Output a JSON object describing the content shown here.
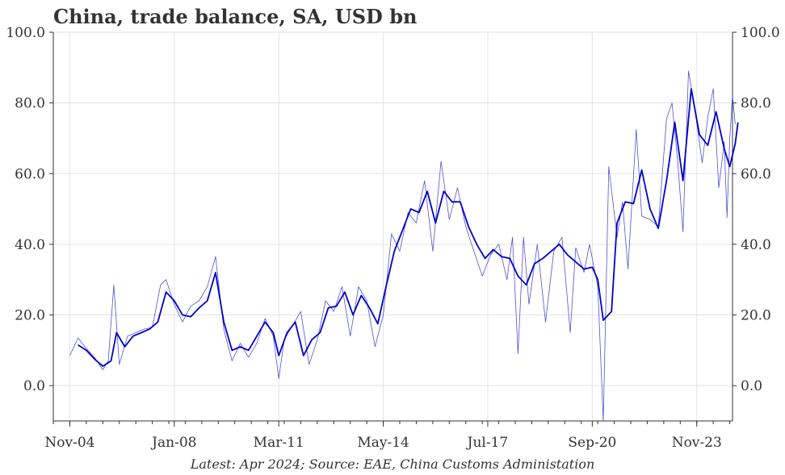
{
  "chart_data": {
    "type": "line",
    "title": "China, trade balance, SA, USD bn",
    "subtitle": "",
    "xlabel": "",
    "ylabel": "",
    "footer": "Latest: Apr 2024; Source: EAE, China Customs Administation",
    "x_ticks": [
      "Nov-04",
      "Jan-08",
      "Mar-11",
      "May-14",
      "Jul-17",
      "Sep-20",
      "Nov-23"
    ],
    "y_ticks": [
      "0.0",
      "20.0",
      "40.0",
      "60.0",
      "80.0",
      "100.0"
    ],
    "ylim": [
      -10,
      100
    ],
    "xlim": [
      "2004-05",
      "2024-12"
    ],
    "grid": true,
    "legend": "none",
    "series": [
      {
        "color": "#3333cc",
        "style": "thin",
        "points": [
          [
            "2004-11",
            8.5
          ],
          [
            "2005-02",
            13.5
          ],
          [
            "2005-05",
            10.5
          ],
          [
            "2005-08",
            8
          ],
          [
            "2005-11",
            4.5
          ],
          [
            "2006-01",
            7
          ],
          [
            "2006-03",
            28.5
          ],
          [
            "2006-05",
            6
          ],
          [
            "2006-08",
            14
          ],
          [
            "2006-11",
            15
          ],
          [
            "2007-02",
            16
          ],
          [
            "2007-05",
            16.5
          ],
          [
            "2007-08",
            28.5
          ],
          [
            "2007-10",
            30
          ],
          [
            "2008-01",
            23
          ],
          [
            "2008-04",
            18
          ],
          [
            "2008-07",
            22.5
          ],
          [
            "2008-10",
            24
          ],
          [
            "2009-01",
            28
          ],
          [
            "2009-04",
            36.5
          ],
          [
            "2009-07",
            16
          ],
          [
            "2009-10",
            7
          ],
          [
            "2010-01",
            12
          ],
          [
            "2010-04",
            8
          ],
          [
            "2010-07",
            12
          ],
          [
            "2010-10",
            19
          ],
          [
            "2011-01",
            14
          ],
          [
            "2011-03",
            2
          ],
          [
            "2011-05",
            13
          ],
          [
            "2011-08",
            17
          ],
          [
            "2011-11",
            21
          ],
          [
            "2012-02",
            6
          ],
          [
            "2012-05",
            13
          ],
          [
            "2012-08",
            24
          ],
          [
            "2012-11",
            21
          ],
          [
            "2013-02",
            28
          ],
          [
            "2013-05",
            14
          ],
          [
            "2013-08",
            28
          ],
          [
            "2013-11",
            24
          ],
          [
            "2014-02",
            11
          ],
          [
            "2014-05",
            20
          ],
          [
            "2014-08",
            43
          ],
          [
            "2014-11",
            38
          ],
          [
            "2015-02",
            49
          ],
          [
            "2015-05",
            46
          ],
          [
            "2015-08",
            58
          ],
          [
            "2015-11",
            38
          ],
          [
            "2016-02",
            63.5
          ],
          [
            "2016-05",
            47
          ],
          [
            "2016-08",
            56
          ],
          [
            "2016-11",
            45
          ],
          [
            "2017-02",
            38
          ],
          [
            "2017-05",
            31
          ],
          [
            "2017-08",
            37
          ],
          [
            "2017-11",
            40
          ],
          [
            "2018-02",
            30
          ],
          [
            "2018-04",
            42
          ],
          [
            "2018-06",
            9
          ],
          [
            "2018-08",
            42
          ],
          [
            "2018-10",
            23
          ],
          [
            "2019-01",
            40
          ],
          [
            "2019-04",
            18
          ],
          [
            "2019-07",
            38
          ],
          [
            "2019-10",
            42
          ],
          [
            "2020-01",
            15
          ],
          [
            "2020-03",
            39
          ],
          [
            "2020-06",
            32
          ],
          [
            "2020-08",
            40
          ],
          [
            "2020-11",
            28
          ],
          [
            "2021-01",
            -10
          ],
          [
            "2021-03",
            62
          ],
          [
            "2021-06",
            42
          ],
          [
            "2021-08",
            52
          ],
          [
            "2021-10",
            33
          ],
          [
            "2022-01",
            72.5
          ],
          [
            "2022-03",
            48
          ],
          [
            "2022-06",
            47
          ],
          [
            "2022-09",
            45
          ],
          [
            "2022-12",
            75.5
          ],
          [
            "2023-02",
            80
          ],
          [
            "2023-04",
            64
          ],
          [
            "2023-06",
            43.5
          ],
          [
            "2023-08",
            89
          ],
          [
            "2023-10",
            80
          ],
          [
            "2024-01",
            63
          ],
          [
            "2024-03",
            76
          ],
          [
            "2024-05",
            84
          ],
          [
            "2024-07",
            56
          ],
          [
            "2024-09",
            69
          ],
          [
            "2024-10",
            47.5
          ],
          [
            "2024-11",
            70
          ],
          [
            "2024-12",
            82
          ],
          [
            "2025-01",
            74
          ]
        ]
      },
      {
        "color": "#0000cc",
        "style": "thick",
        "points": [
          [
            "2005-02",
            11.5
          ],
          [
            "2005-05",
            10
          ],
          [
            "2005-08",
            7.5
          ],
          [
            "2005-11",
            5.5
          ],
          [
            "2006-02",
            7
          ],
          [
            "2006-04",
            15
          ],
          [
            "2006-07",
            11
          ],
          [
            "2006-10",
            14
          ],
          [
            "2007-01",
            15
          ],
          [
            "2007-04",
            16
          ],
          [
            "2007-07",
            18
          ],
          [
            "2007-10",
            26.5
          ],
          [
            "2008-01",
            24
          ],
          [
            "2008-04",
            20
          ],
          [
            "2008-07",
            19.5
          ],
          [
            "2008-10",
            22
          ],
          [
            "2009-01",
            24
          ],
          [
            "2009-04",
            32
          ],
          [
            "2009-07",
            18
          ],
          [
            "2009-10",
            10
          ],
          [
            "2010-01",
            11
          ],
          [
            "2010-04",
            10
          ],
          [
            "2010-07",
            14
          ],
          [
            "2010-10",
            18
          ],
          [
            "2011-01",
            15
          ],
          [
            "2011-03",
            8.5
          ],
          [
            "2011-06",
            15
          ],
          [
            "2011-09",
            18
          ],
          [
            "2011-12",
            8.5
          ],
          [
            "2012-03",
            13
          ],
          [
            "2012-06",
            15
          ],
          [
            "2012-09",
            22
          ],
          [
            "2012-12",
            22.5
          ],
          [
            "2013-03",
            26.5
          ],
          [
            "2013-06",
            20
          ],
          [
            "2013-09",
            25.5
          ],
          [
            "2013-12",
            22
          ],
          [
            "2014-03",
            17.5
          ],
          [
            "2014-06",
            28
          ],
          [
            "2014-09",
            38
          ],
          [
            "2014-12",
            44
          ],
          [
            "2015-03",
            50
          ],
          [
            "2015-06",
            49
          ],
          [
            "2015-09",
            55
          ],
          [
            "2015-12",
            46
          ],
          [
            "2016-03",
            55
          ],
          [
            "2016-06",
            52
          ],
          [
            "2016-09",
            52
          ],
          [
            "2016-12",
            45
          ],
          [
            "2017-03",
            40
          ],
          [
            "2017-06",
            36
          ],
          [
            "2017-09",
            38.5
          ],
          [
            "2017-12",
            36.5
          ],
          [
            "2018-03",
            36
          ],
          [
            "2018-06",
            31
          ],
          [
            "2018-09",
            28.5
          ],
          [
            "2018-12",
            34.5
          ],
          [
            "2019-03",
            36
          ],
          [
            "2019-06",
            38
          ],
          [
            "2019-09",
            40
          ],
          [
            "2019-12",
            37
          ],
          [
            "2020-03",
            35
          ],
          [
            "2020-06",
            33
          ],
          [
            "2020-09",
            33.5
          ],
          [
            "2020-11",
            30
          ],
          [
            "2021-01",
            18.5
          ],
          [
            "2021-04",
            21
          ],
          [
            "2021-06",
            46
          ],
          [
            "2021-09",
            52
          ],
          [
            "2021-12",
            51.5
          ],
          [
            "2022-03",
            61
          ],
          [
            "2022-06",
            50
          ],
          [
            "2022-09",
            44.5
          ],
          [
            "2022-12",
            58
          ],
          [
            "2023-03",
            74.5
          ],
          [
            "2023-06",
            58
          ],
          [
            "2023-09",
            84
          ],
          [
            "2023-12",
            71
          ],
          [
            "2024-03",
            68
          ],
          [
            "2024-06",
            77.5
          ],
          [
            "2024-09",
            67
          ],
          [
            "2024-11",
            62
          ],
          [
            "2025-01",
            68.5
          ],
          [
            "2025-02",
            74.5
          ]
        ]
      }
    ]
  }
}
